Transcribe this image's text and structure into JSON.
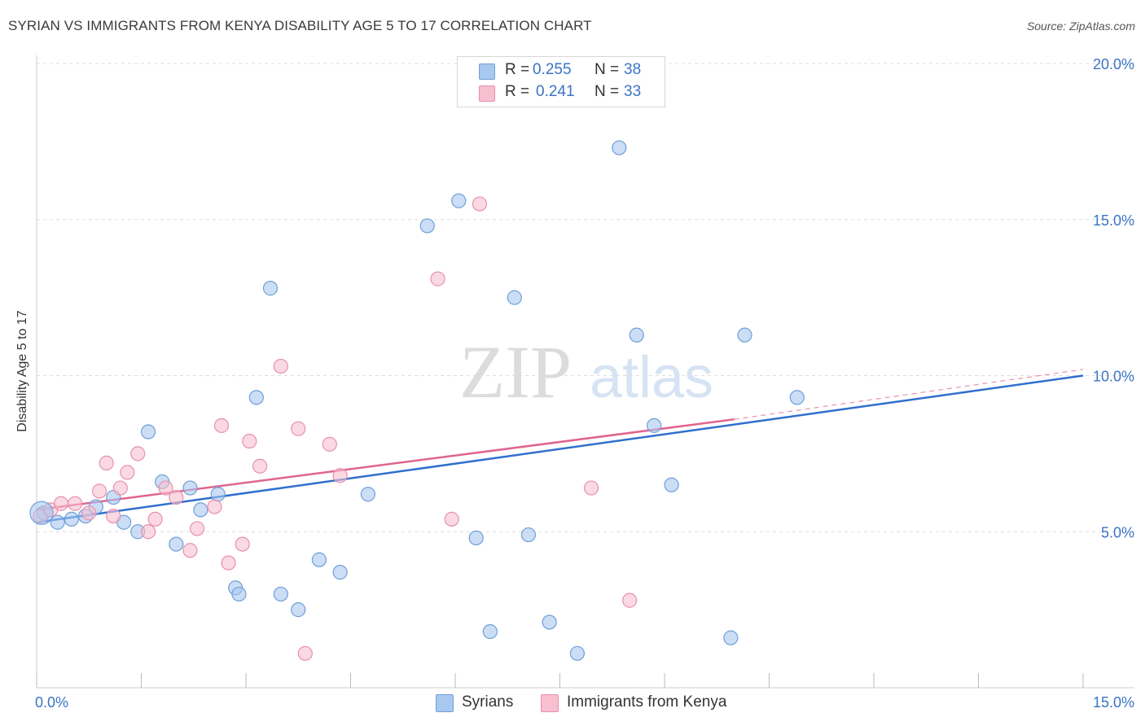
{
  "title": "SYRIAN VS IMMIGRANTS FROM KENYA DISABILITY AGE 5 TO 17 CORRELATION CHART",
  "source": "Source: ZipAtlas.com",
  "watermark": {
    "zip": "ZIP",
    "atlas": "atlas"
  },
  "legend": {
    "rows": [
      {
        "r_label": "R =",
        "r_value": "0.255",
        "n_label": "N =",
        "n_value": "38",
        "color": "#a9c8f0",
        "border": "#6f9fd8"
      },
      {
        "r_label": "R =",
        "r_value": "0.241",
        "n_label": "N =",
        "n_value": "33",
        "color": "#f7bfd0",
        "border": "#e890ac"
      }
    ]
  },
  "bottom_legend": [
    {
      "label": "Syrians",
      "color": "#a9c8f0",
      "border": "#6f9fd8"
    },
    {
      "label": "Immigrants from Kenya",
      "color": "#f7bfd0",
      "border": "#e890ac"
    }
  ],
  "chart_data": {
    "type": "scatter",
    "title": "SYRIAN VS IMMIGRANTS FROM KENYA DISABILITY AGE 5 TO 17 CORRELATION CHART",
    "xlabel": "",
    "ylabel": "Disability Age 5 to 17",
    "xlim": [
      0,
      15
    ],
    "ylim": [
      0,
      20
    ],
    "x_tick_labels": [
      "0.0%",
      "15.0%"
    ],
    "y_ticks": [
      5,
      10,
      15,
      20
    ],
    "y_tick_labels": [
      "5.0%",
      "10.0%",
      "15.0%",
      "20.0%"
    ],
    "grid": true,
    "series": [
      {
        "name": "Syrians",
        "color": "#a9c8f0",
        "edge": "#6f9fd8",
        "line_color": "#2f6fcf",
        "trend": {
          "x": [
            0,
            15
          ],
          "y": [
            5.3,
            10.0
          ]
        },
        "points": [
          [
            0.1,
            5.6
          ],
          [
            0.3,
            5.3
          ],
          [
            0.5,
            5.4
          ],
          [
            0.7,
            5.5
          ],
          [
            0.85,
            5.8
          ],
          [
            1.1,
            6.1
          ],
          [
            1.25,
            5.3
          ],
          [
            1.45,
            5.0
          ],
          [
            1.6,
            8.2
          ],
          [
            1.8,
            6.6
          ],
          [
            2.0,
            4.6
          ],
          [
            2.2,
            6.4
          ],
          [
            2.35,
            5.7
          ],
          [
            2.6,
            6.2
          ],
          [
            2.85,
            3.2
          ],
          [
            2.9,
            3.0
          ],
          [
            3.15,
            9.3
          ],
          [
            3.35,
            12.8
          ],
          [
            3.5,
            3.0
          ],
          [
            3.75,
            2.5
          ],
          [
            4.05,
            4.1
          ],
          [
            4.35,
            3.7
          ],
          [
            4.75,
            6.2
          ],
          [
            5.6,
            14.8
          ],
          [
            6.05,
            15.6
          ],
          [
            6.3,
            4.8
          ],
          [
            6.5,
            1.8
          ],
          [
            6.85,
            12.5
          ],
          [
            7.05,
            4.9
          ],
          [
            7.35,
            2.1
          ],
          [
            7.75,
            1.1
          ],
          [
            8.35,
            17.3
          ],
          [
            8.6,
            11.3
          ],
          [
            8.85,
            8.4
          ],
          [
            9.1,
            6.5
          ],
          [
            9.95,
            1.6
          ],
          [
            10.15,
            11.3
          ],
          [
            10.9,
            9.3
          ]
        ]
      },
      {
        "name": "Immigrants from Kenya",
        "color": "#f7bfd0",
        "edge": "#e890ac",
        "line_color": "#e0648e",
        "trend": {
          "x": [
            0,
            10.0
          ],
          "y": [
            5.7,
            8.6
          ]
        },
        "trend_dashed": {
          "x": [
            10.0,
            15
          ],
          "y": [
            8.6,
            10.2
          ]
        },
        "points": [
          [
            0.05,
            5.5
          ],
          [
            0.2,
            5.7
          ],
          [
            0.35,
            5.9
          ],
          [
            0.55,
            5.9
          ],
          [
            0.75,
            5.6
          ],
          [
            0.9,
            6.3
          ],
          [
            1.0,
            7.2
          ],
          [
            1.1,
            5.5
          ],
          [
            1.2,
            6.4
          ],
          [
            1.3,
            6.9
          ],
          [
            1.45,
            7.5
          ],
          [
            1.6,
            5.0
          ],
          [
            1.7,
            5.4
          ],
          [
            1.85,
            6.4
          ],
          [
            2.0,
            6.1
          ],
          [
            2.2,
            4.4
          ],
          [
            2.3,
            5.1
          ],
          [
            2.55,
            5.8
          ],
          [
            2.65,
            8.4
          ],
          [
            2.75,
            4.0
          ],
          [
            2.95,
            4.6
          ],
          [
            3.05,
            7.9
          ],
          [
            3.2,
            7.1
          ],
          [
            3.5,
            10.3
          ],
          [
            3.75,
            8.3
          ],
          [
            3.85,
            1.1
          ],
          [
            4.2,
            7.8
          ],
          [
            4.35,
            6.8
          ],
          [
            5.75,
            13.1
          ],
          [
            5.95,
            5.4
          ],
          [
            6.35,
            15.5
          ],
          [
            7.95,
            6.4
          ],
          [
            8.5,
            2.8
          ]
        ]
      }
    ]
  }
}
